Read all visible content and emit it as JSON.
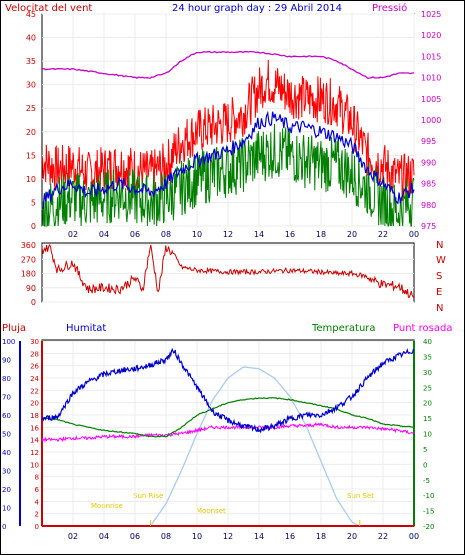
{
  "header": {
    "title": "24 hour graph day : 29 Abril 2014",
    "left_title": "Velocitat del vent",
    "right_title": "Pressió"
  },
  "wind_labels": [
    "N",
    "W",
    "S",
    "E",
    "N"
  ],
  "bottom_legend": {
    "rain": "Pluja",
    "humidity": "Humitat",
    "temperature": "Temperatura",
    "dew_point": "Punt rosada"
  },
  "sun_labels": {
    "moonrise": "Moonrise",
    "sunrise": "Sun Rise",
    "moonset": "Moonset",
    "sunset": "Sun Set"
  },
  "colors": {
    "wind_gust": "#ff0000",
    "wind_avg": "#0000cc",
    "wind_speed": "#008000",
    "pressure": "#cc00cc",
    "wind_dir": "#cc0000",
    "humidity": "#0000cc",
    "temperature": "#008000",
    "dew_point": "#ff00ff",
    "solar": "#aaccee",
    "rain_axis": "#cc0000"
  },
  "chart_data": [
    {
      "type": "line",
      "title": "24 hour graph day : 29 Abril 2014",
      "x_ticks": [
        "02",
        "04",
        "06",
        "08",
        "10",
        "12",
        "14",
        "16",
        "18",
        "20",
        "22",
        "00"
      ],
      "left_axis": {
        "label": "Velocitat del vent",
        "ylim": [
          0,
          45
        ],
        "ticks": [
          0,
          5,
          10,
          15,
          20,
          25,
          30,
          35,
          40,
          45
        ]
      },
      "right_axis": {
        "label": "Pressió",
        "ylim": [
          975,
          1025
        ],
        "ticks": [
          975,
          980,
          985,
          990,
          995,
          1000,
          1005,
          1010,
          1015,
          1020,
          1025
        ]
      },
      "series": [
        {
          "name": "Pressió",
          "axis": "right",
          "x": [
            0,
            2,
            4,
            6,
            7,
            8,
            9,
            10,
            12,
            14,
            16,
            18,
            19,
            20,
            21,
            22,
            23,
            24
          ],
          "values": [
            1012,
            1012,
            1011,
            1010,
            1010,
            1011,
            1014,
            1016,
            1016,
            1016,
            1015,
            1015,
            1014,
            1012,
            1010,
            1010,
            1011,
            1011
          ]
        },
        {
          "name": "gust",
          "axis": "left",
          "x": [
            0,
            1,
            2,
            3,
            4,
            5,
            6,
            7,
            8,
            9,
            10,
            11,
            12,
            13,
            14,
            14.5,
            15,
            16,
            17,
            18,
            19,
            20,
            21,
            22,
            23,
            24
          ],
          "values": [
            14,
            12,
            13,
            11,
            12,
            13,
            12,
            11,
            13,
            18,
            20,
            21,
            22,
            24,
            29,
            31,
            30,
            28,
            27,
            27,
            26,
            22,
            15,
            13,
            10,
            11
          ]
        },
        {
          "name": "average",
          "axis": "left",
          "x": [
            0,
            1,
            2,
            3,
            4,
            5,
            6,
            7,
            8,
            9,
            10,
            11,
            12,
            13,
            14,
            15,
            16,
            17,
            18,
            19,
            20,
            21,
            22,
            23,
            24
          ],
          "values": [
            5,
            8,
            9,
            7,
            8,
            9,
            8,
            7,
            9,
            12,
            14,
            15,
            16,
            18,
            22,
            23,
            21,
            21,
            20,
            19,
            17,
            12,
            9,
            6,
            8
          ]
        },
        {
          "name": "speed",
          "axis": "left",
          "x": [
            0,
            1,
            2,
            3,
            4,
            5,
            6,
            7,
            8,
            9,
            10,
            11,
            12,
            13,
            14,
            15,
            16,
            17,
            18,
            19,
            20,
            21,
            22,
            23,
            24
          ],
          "values": [
            3,
            5,
            6,
            5,
            6,
            7,
            6,
            5,
            6,
            8,
            10,
            11,
            12,
            13,
            15,
            16,
            15,
            14,
            13,
            13,
            11,
            8,
            5,
            3,
            6
          ]
        }
      ]
    },
    {
      "type": "line",
      "title": "",
      "x_ticks": [
        "02",
        "04",
        "06",
        "08",
        "10",
        "12",
        "14",
        "16",
        "18",
        "20",
        "22",
        "00"
      ],
      "left_axis": {
        "ylim": [
          0,
          360
        ],
        "ticks": [
          0,
          90,
          180,
          270,
          360
        ]
      },
      "right_axis": {
        "labels": [
          "N",
          "W",
          "S",
          "E",
          "N"
        ]
      },
      "series": [
        {
          "name": "wind direction",
          "x": [
            0,
            0.5,
            1,
            2,
            2.5,
            3,
            4,
            5,
            6,
            6.5,
            7,
            7.5,
            8,
            8.5,
            9,
            10,
            12,
            14,
            16,
            18,
            19,
            20,
            21,
            21.5,
            22,
            23,
            24
          ],
          "values": [
            330,
            350,
            200,
            250,
            150,
            80,
            90,
            80,
            150,
            80,
            360,
            60,
            350,
            300,
            220,
            200,
            190,
            190,
            200,
            190,
            180,
            180,
            160,
            130,
            110,
            100,
            30
          ]
        }
      ]
    },
    {
      "type": "line",
      "title": "",
      "x_ticks": [
        "02",
        "04",
        "06",
        "08",
        "10",
        "12",
        "14",
        "16",
        "18",
        "20",
        "22",
        "00"
      ],
      "axes": [
        {
          "label": "Pluja",
          "ylim": [
            0,
            30
          ],
          "ticks": [
            0,
            2,
            4,
            6,
            8,
            10,
            12,
            14,
            16,
            18,
            20,
            22,
            24,
            26,
            28,
            30
          ]
        },
        {
          "label": "Humitat",
          "ylim": [
            0,
            100
          ],
          "ticks": [
            0,
            10,
            20,
            30,
            40,
            50,
            60,
            70,
            80,
            90,
            100
          ]
        },
        {
          "label": "Temperatura",
          "ylim": [
            -20,
            40
          ],
          "ticks": [
            -20,
            -15,
            -10,
            -5,
            0,
            5,
            10,
            15,
            20,
            25,
            30,
            35,
            40
          ]
        },
        {
          "label": "Punt rosada"
        }
      ],
      "series": [
        {
          "name": "Humitat",
          "axis": "humidity",
          "x": [
            0,
            1,
            2,
            3,
            4,
            5,
            6,
            7,
            8,
            8.5,
            9,
            10,
            11,
            12,
            13,
            14,
            15,
            16,
            17,
            18,
            19,
            20,
            21,
            22,
            23,
            24
          ],
          "values": [
            58,
            59,
            72,
            78,
            82,
            84,
            85,
            87,
            90,
            95,
            88,
            75,
            62,
            57,
            54,
            52,
            54,
            58,
            60,
            60,
            64,
            70,
            80,
            88,
            92,
            95
          ]
        },
        {
          "name": "Temperatura",
          "axis": "temperature",
          "x": [
            0,
            1,
            2,
            3,
            4,
            5,
            6,
            7,
            8,
            9,
            10,
            11,
            12,
            13,
            14,
            15,
            16,
            17,
            18,
            19,
            20,
            21,
            22,
            23,
            24
          ],
          "values": [
            15,
            14.5,
            13,
            12,
            11,
            10.5,
            10,
            9,
            9,
            12,
            16,
            18,
            20,
            21,
            21.5,
            21.5,
            21,
            20,
            19,
            18,
            16,
            15,
            13,
            12.5,
            12
          ]
        },
        {
          "name": "Punt rosada",
          "axis": "temperature",
          "x": [
            0,
            1,
            2,
            3,
            4,
            5,
            6,
            7,
            8,
            9,
            10,
            11,
            12,
            13,
            14,
            15,
            16,
            17,
            18,
            19,
            20,
            21,
            22,
            23,
            24
          ],
          "values": [
            8,
            8,
            8.5,
            8.5,
            9,
            9,
            9,
            9.5,
            9.5,
            10,
            11,
            12,
            12,
            12,
            12,
            12,
            12.5,
            12.5,
            13,
            12,
            12,
            12,
            11.5,
            11,
            10
          ]
        },
        {
          "name": "solar",
          "axis": "humidity",
          "x": [
            7,
            8,
            9,
            10,
            11,
            12,
            13,
            14,
            15,
            16,
            17,
            18,
            19,
            20,
            20.5
          ],
          "values": [
            0,
            12,
            30,
            50,
            68,
            80,
            86,
            85,
            80,
            70,
            55,
            35,
            15,
            2,
            0
          ]
        },
        {
          "name": "Pluja",
          "axis": "rain",
          "x": [
            0,
            24
          ],
          "values": [
            0,
            0
          ]
        }
      ]
    }
  ]
}
